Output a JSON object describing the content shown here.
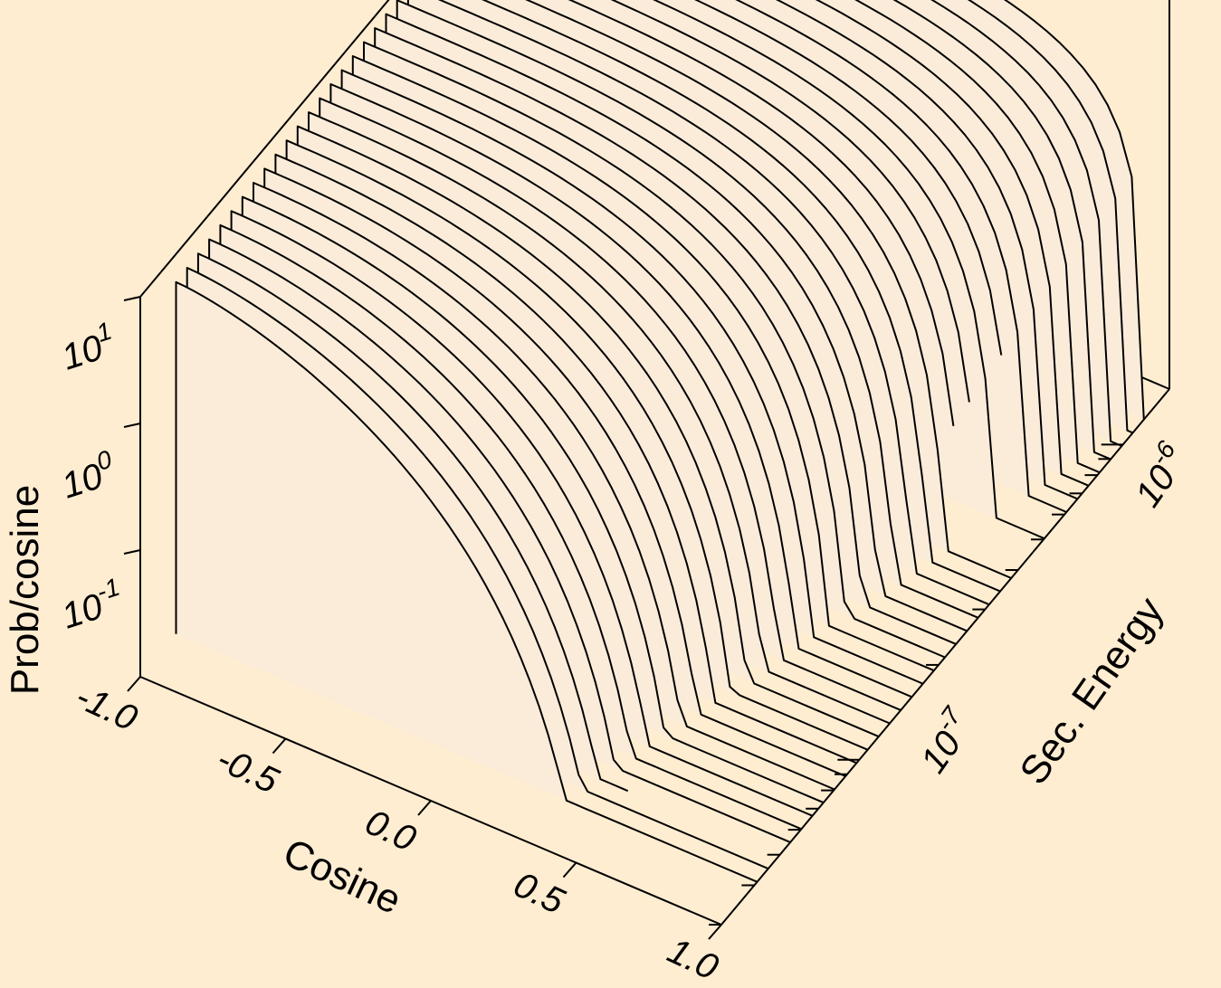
{
  "chart_data": {
    "type": "surface-3d-waterfall",
    "title": "",
    "xlabel": "Cosine",
    "ylabel": "Sec. Energy",
    "zlabel": "Prob/cosine",
    "x_ticks": [
      "-1.0",
      "-0.5",
      "0.0",
      "0.5",
      "1.0"
    ],
    "x_range": [
      -1.0,
      1.0
    ],
    "y_scale": "log",
    "y_ticks": [
      {
        "base": "10",
        "exp": "-7",
        "value": 1e-07
      },
      {
        "base": "10",
        "exp": "-6",
        "value": 1e-06
      }
    ],
    "y_range": [
      3e-08,
      1.5e-06
    ],
    "z_scale": "log",
    "z_ticks": [
      {
        "base": "10",
        "exp": "-1",
        "value": 0.1
      },
      {
        "base": "10",
        "exp": "0",
        "value": 1
      },
      {
        "base": "10",
        "exp": "1",
        "value": 10
      }
    ],
    "z_range": [
      0.01,
      10
    ],
    "n_slices": 36,
    "slice_energy_range": [
      4.1e-08,
      1.2e-06
    ],
    "grid": false,
    "colors": {
      "background": "#ffedd1",
      "surface": "#fbecd9",
      "lines": "#000000"
    }
  }
}
